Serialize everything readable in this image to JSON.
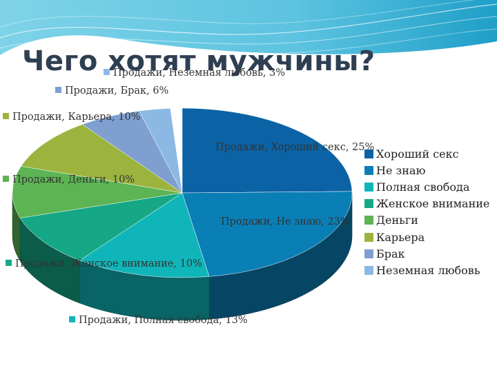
{
  "slide": {
    "title": "Чего хотят мужчины?"
  },
  "chart_data": {
    "type": "pie",
    "title": "",
    "series_name": "Продажи",
    "categories": [
      "Хороший секс",
      "Не знаю",
      "Полная свобода",
      "Женское внимание",
      "Деньги",
      "Карьера",
      "Брак",
      "Неземная любовь"
    ],
    "values": [
      25,
      23,
      13,
      10,
      10,
      10,
      6,
      3
    ],
    "colors": [
      "#0b63a6",
      "#0a7fb6",
      "#10b5b9",
      "#16a886",
      "#5db454",
      "#9cb43e",
      "#7f9fd0",
      "#8cb9e4"
    ],
    "data_labels": [
      "Продажи, Хороший секс, 25%",
      "Продажи, Не знаю, 23%",
      "Продажи, Полная свобода, 13%",
      "Продажи, Женское внимание, 10%",
      "Продажи, Деньги, 10%",
      "Продажи, Карьера, 10%",
      "Продажи, Брак, 6%",
      "Продажи, Неземная любовь, 3%"
    ],
    "legend_position": "right"
  }
}
